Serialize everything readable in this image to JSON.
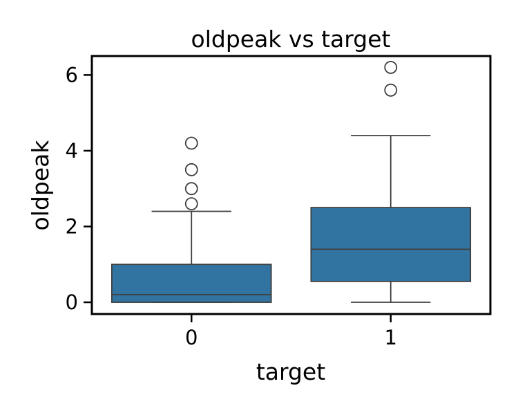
{
  "chart_data": {
    "type": "box",
    "title": "oldpeak vs target",
    "xlabel": "target",
    "ylabel": "oldpeak",
    "ylim": [
      -0.31,
      6.5
    ],
    "yticks": [
      0,
      2,
      4,
      6
    ],
    "grid": false,
    "legend": "none",
    "box_color": "#3274a1",
    "line_color": "#3f3f3f",
    "categories": [
      "0",
      "1"
    ],
    "boxes": [
      {
        "category": "0",
        "whisker_low": 0.0,
        "q1": 0.0,
        "median": 0.2,
        "q3": 1.0,
        "whisker_high": 2.4,
        "outliers": [
          2.6,
          3.0,
          3.5,
          4.2
        ]
      },
      {
        "category": "1",
        "whisker_low": 0.0,
        "q1": 0.55,
        "median": 1.4,
        "q3": 2.5,
        "whisker_high": 4.4,
        "outliers": [
          5.6,
          6.2
        ]
      }
    ]
  }
}
